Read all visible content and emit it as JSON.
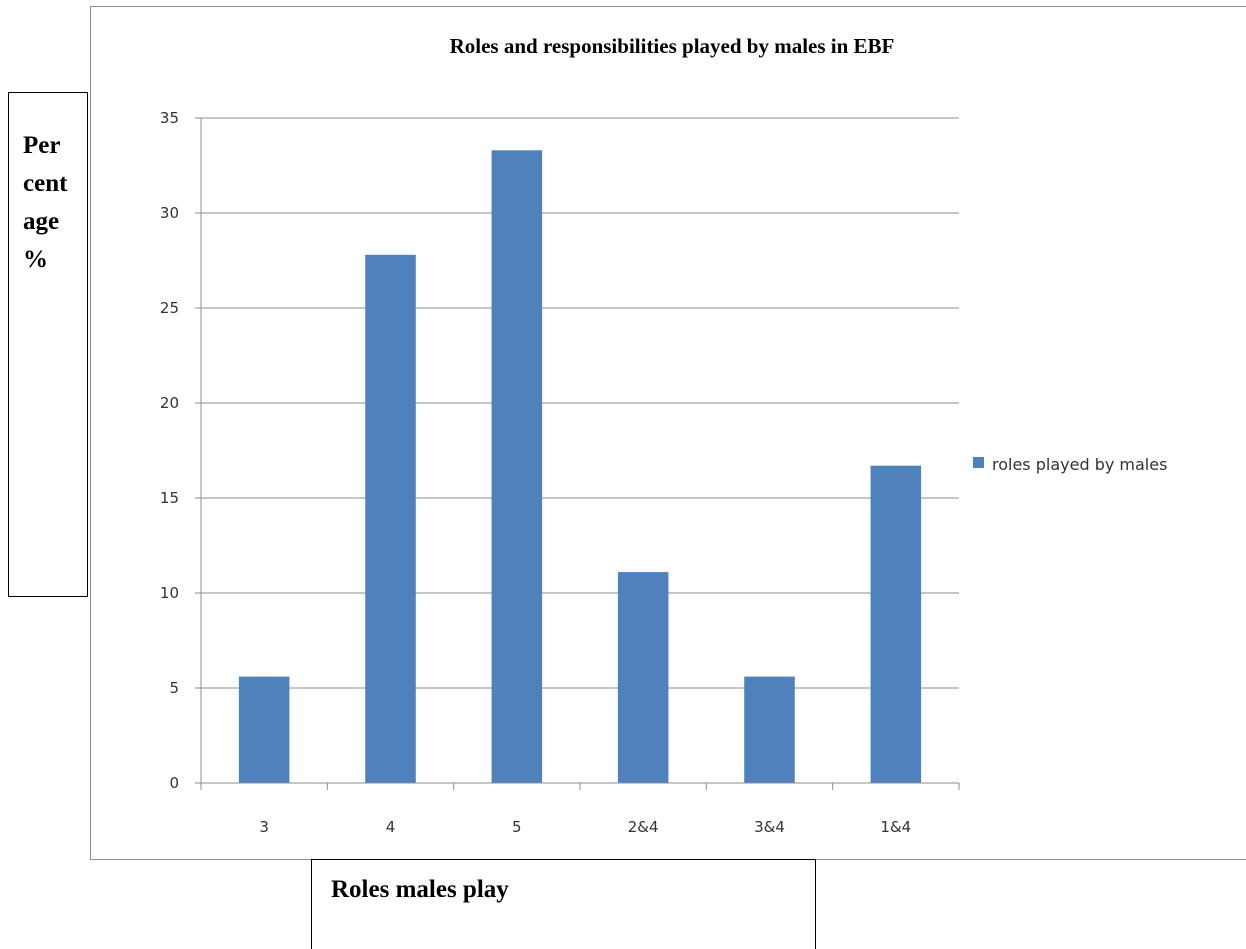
{
  "chart_data": {
    "type": "bar",
    "title": "Roles and responsibilities played by males in EBF",
    "xlabel": "Roles males play",
    "ylabel": "Per\ncent\nage\n%",
    "categories": [
      "3",
      "4",
      "5",
      "2&4",
      "3&4",
      "1&4"
    ],
    "series": [
      {
        "name": "roles played by males",
        "values": [
          5.6,
          27.8,
          33.3,
          11.1,
          5.6,
          16.7
        ],
        "color": "#4f81bd"
      }
    ],
    "ylim": [
      0,
      35
    ],
    "yticks": [
      "0",
      "5",
      "10",
      "15",
      "20",
      "25",
      "30",
      "35"
    ],
    "grid": true,
    "legend_position": "right"
  }
}
